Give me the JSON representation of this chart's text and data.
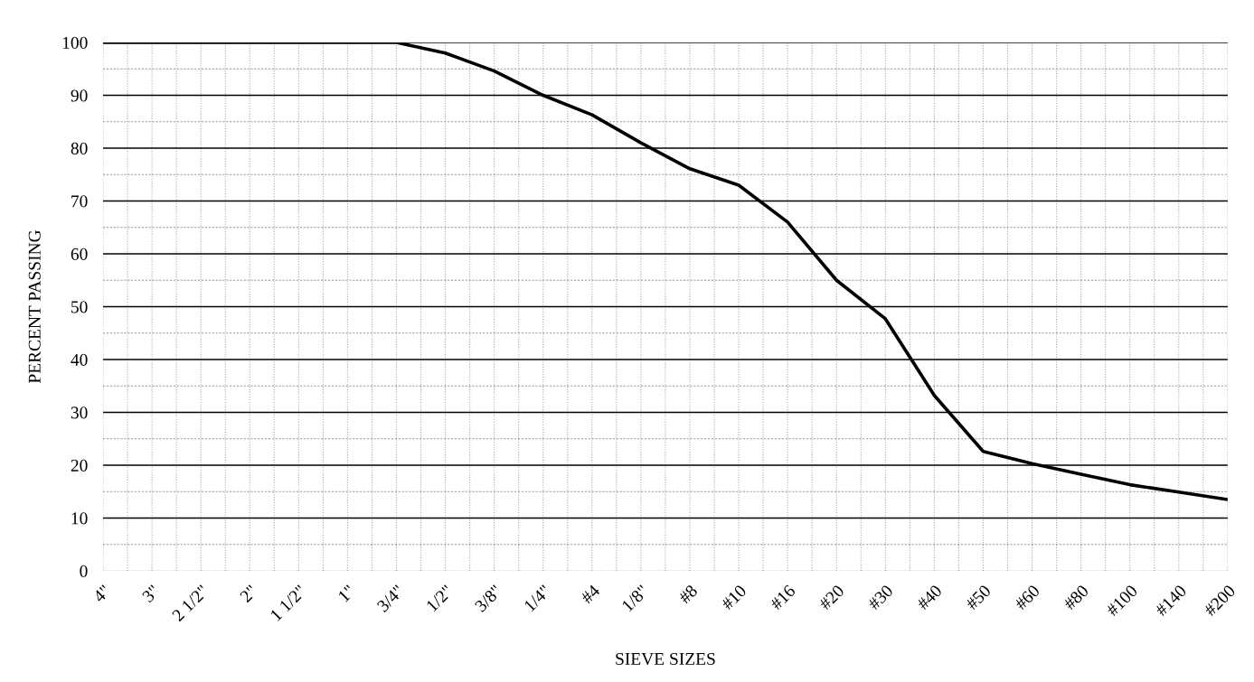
{
  "chart_data": {
    "type": "line",
    "xlabel": "SIEVE SIZES",
    "ylabel": "PERCENT PASSING",
    "categories": [
      "4\"",
      "3\"",
      "2 1/2\"",
      "2\"",
      "1 1/2\"",
      "1\"",
      "3/4\"",
      "1/2\"",
      "3/8\"",
      "1/4\"",
      "#4",
      "1/8\"",
      "#8",
      "#10",
      "#16",
      "#20",
      "#30",
      "#40",
      "#50",
      "#60",
      "#80",
      "#100",
      "#140",
      "#200"
    ],
    "series": [
      {
        "color": "#000000",
        "values": [
          100,
          100,
          100,
          100,
          100,
          100,
          100,
          98,
          94.6,
          90,
          86.3,
          81,
          76.1,
          73,
          66,
          55,
          47.7,
          33.2,
          22.6,
          20.3,
          18.3,
          16.3,
          14.9,
          13.5
        ]
      }
    ],
    "ylim": [
      0,
      100
    ],
    "yticks": [
      0,
      10,
      20,
      30,
      40,
      50,
      60,
      70,
      80,
      90,
      100
    ],
    "grid": true,
    "marker": "none",
    "line_style": "solid"
  }
}
